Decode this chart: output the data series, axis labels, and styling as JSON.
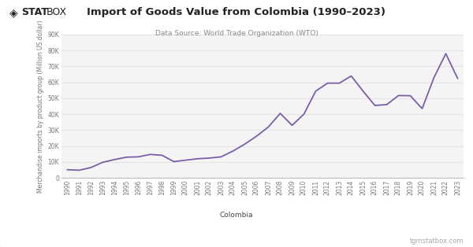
{
  "title": "Import of Goods Value from Colombia (1990–2023)",
  "subtitle": "Data Source: World Trade Organization (WTO)",
  "ylabel": "Merchandise imports by product group (Million US dollar)",
  "legend_label": "Colombia",
  "watermark": "tgmstatbox.com",
  "logo_text": "STATBOX",
  "line_color": "#7b5ea7",
  "background_color": "#f4f4f4",
  "header_color": "#ffffff",
  "years": [
    1990,
    1991,
    1992,
    1993,
    1994,
    1995,
    1996,
    1997,
    1998,
    1999,
    2000,
    2001,
    2002,
    2003,
    2004,
    2005,
    2006,
    2007,
    2008,
    2009,
    2010,
    2011,
    2012,
    2013,
    2014,
    2015,
    2016,
    2017,
    2018,
    2019,
    2020,
    2021,
    2022,
    2023
  ],
  "values": [
    5100,
    4800,
    6500,
    9800,
    11500,
    13000,
    13200,
    14700,
    14200,
    10200,
    11100,
    12000,
    12400,
    13200,
    16800,
    21200,
    26200,
    32000,
    40500,
    33000,
    40000,
    54500,
    59500,
    59500,
    64000,
    54500,
    45500,
    46000,
    51700,
    51600,
    43500,
    63000,
    78000,
    62500
  ],
  "ylim": [
    0,
    90000
  ],
  "yticks": [
    0,
    10000,
    20000,
    30000,
    40000,
    50000,
    60000,
    70000,
    80000,
    90000
  ],
  "ytick_labels": [
    "0",
    "10K",
    "20K",
    "30K",
    "40K",
    "50K",
    "60K",
    "70K",
    "80K",
    "90K"
  ],
  "title_fontsize": 9.5,
  "subtitle_fontsize": 6.5,
  "ylabel_fontsize": 5.5,
  "tick_fontsize": 5.5,
  "legend_fontsize": 6.5,
  "watermark_fontsize": 6.0
}
